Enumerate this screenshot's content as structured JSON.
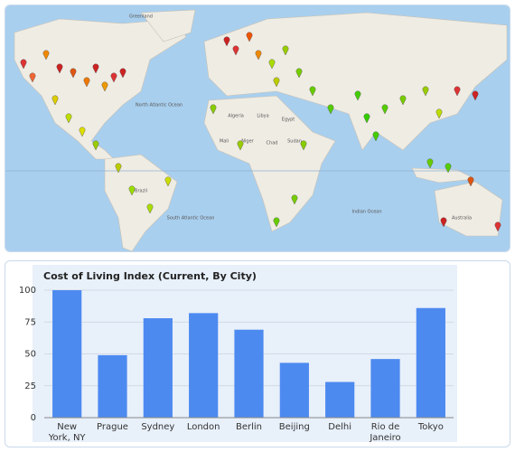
{
  "map": {
    "labels": [
      "Greenland",
      "North Atlantic Ocean",
      "South Atlantic Ocean",
      "Indian Ocean",
      "Australia",
      "Brazil",
      "Algeria",
      "Libya",
      "Egypt",
      "Niger",
      "Chad",
      "Sudan",
      "Mali"
    ]
  },
  "chart_data": {
    "type": "bar",
    "title": "Cost of Living Index (Current, By City)",
    "categories": [
      "New York, NY",
      "Prague",
      "Sydney",
      "London",
      "Berlin",
      "Beijing",
      "Delhi",
      "Rio de Janeiro",
      "Tokyo"
    ],
    "values": [
      100,
      49,
      78,
      82,
      69,
      43,
      28,
      46,
      86
    ],
    "color": "#4d8af0",
    "ylim": [
      0,
      100
    ],
    "yticks": [
      0,
      25,
      50,
      75,
      100
    ],
    "grid": true
  }
}
